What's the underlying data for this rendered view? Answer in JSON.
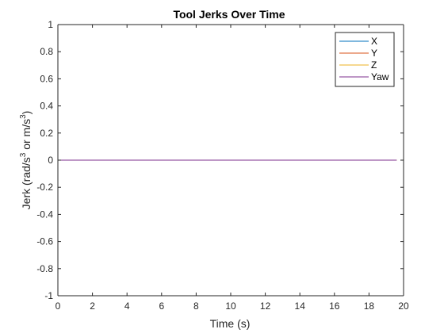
{
  "chart_data": {
    "type": "line",
    "title": "Tool Jerks Over Time",
    "xlabel": "Time (s)",
    "ylabel": {
      "base": "Jerk (rad/s",
      "exp1": "3",
      "mid": " or m/s",
      "exp2": "3",
      "end": ")"
    },
    "xlim": [
      0,
      20
    ],
    "ylim": [
      -1,
      1
    ],
    "xticks": [
      0,
      2,
      4,
      6,
      8,
      10,
      12,
      14,
      16,
      18,
      20
    ],
    "yticks": [
      -1,
      -0.8,
      -0.6,
      -0.4,
      -0.2,
      0,
      0.2,
      0.4,
      0.6,
      0.8,
      1
    ],
    "xtick_labels": [
      "0",
      "2",
      "4",
      "6",
      "8",
      "10",
      "12",
      "14",
      "16",
      "18",
      "20"
    ],
    "ytick_labels": [
      "-1",
      "-0.8",
      "-0.6",
      "-0.4",
      "-0.2",
      "0",
      "0.2",
      "0.4",
      "0.6",
      "0.8",
      "1"
    ],
    "grid": false,
    "legend_position": "top-right",
    "series": [
      {
        "name": "X",
        "color": "#0072BD",
        "x": [
          0,
          19.6
        ],
        "y": [
          0,
          0
        ]
      },
      {
        "name": "Y",
        "color": "#D95319",
        "x": [
          0,
          19.6
        ],
        "y": [
          0,
          0
        ]
      },
      {
        "name": "Z",
        "color": "#EDB120",
        "x": [
          0,
          19.6
        ],
        "y": [
          0,
          0
        ]
      },
      {
        "name": "Yaw",
        "color": "#7E2F8E",
        "x": [
          0,
          19.6
        ],
        "y": [
          0,
          0
        ]
      }
    ]
  }
}
